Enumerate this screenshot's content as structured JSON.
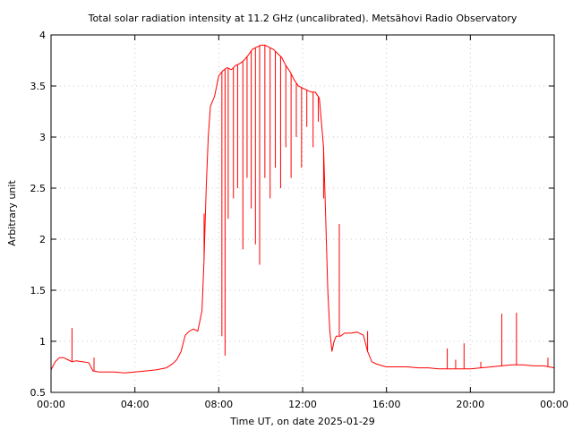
{
  "chart_data": {
    "type": "line",
    "title": "Total solar radiation intensity at 11.2 GHz (uncalibrated). Metsähovi Radio Observatory",
    "xlabel": "Time UT, on date 2025-01-29",
    "ylabel": "Arbitrary unit",
    "xlim": [
      0,
      24
    ],
    "ylim": [
      0.5,
      4.0
    ],
    "x_ticks": [
      0,
      4,
      8,
      12,
      16,
      20,
      24
    ],
    "x_tick_labels": [
      "00:00",
      "04:00",
      "08:00",
      "12:00",
      "16:00",
      "20:00",
      "00:00"
    ],
    "y_ticks": [
      0.5,
      1,
      1.5,
      2,
      2.5,
      3,
      3.5,
      4
    ],
    "y_tick_labels": [
      "0.5",
      "1",
      "1.5",
      "2",
      "2.5",
      "3",
      "3.5",
      "4"
    ],
    "grid": true,
    "line_color": "#ff0000",
    "series": [
      {
        "name": "",
        "x": [
          0.0,
          0.2,
          0.4,
          0.6,
          0.8,
          1.0,
          1.2,
          1.5,
          1.8,
          2.0,
          2.3,
          2.6,
          3.0,
          3.5,
          4.0,
          4.5,
          5.0,
          5.5,
          5.8,
          6.0,
          6.2,
          6.4,
          6.6,
          6.8,
          7.0,
          7.2,
          7.3,
          7.4,
          7.5,
          7.6,
          7.8,
          8.0,
          8.2,
          8.4,
          8.6,
          8.8,
          9.0,
          9.2,
          9.4,
          9.6,
          9.8,
          10.0,
          10.2,
          10.4,
          10.6,
          10.8,
          11.0,
          11.2,
          11.4,
          11.6,
          11.8,
          12.0,
          12.2,
          12.4,
          12.6,
          12.8,
          13.0,
          13.1,
          13.2,
          13.3,
          13.4,
          13.5,
          13.6,
          13.8,
          14.0,
          14.3,
          14.6,
          14.9,
          15.1,
          15.3,
          15.5,
          15.8,
          16.0,
          16.5,
          17.0,
          17.5,
          18.0,
          18.5,
          19.0,
          19.5,
          20.0,
          20.5,
          21.0,
          21.5,
          22.0,
          22.5,
          23.0,
          23.5,
          24.0
        ],
        "y": [
          0.72,
          0.8,
          0.84,
          0.84,
          0.82,
          0.8,
          0.81,
          0.8,
          0.79,
          0.71,
          0.7,
          0.7,
          0.7,
          0.69,
          0.7,
          0.71,
          0.72,
          0.74,
          0.78,
          0.82,
          0.9,
          1.06,
          1.1,
          1.12,
          1.1,
          1.3,
          1.8,
          2.5,
          3.0,
          3.3,
          3.4,
          3.6,
          3.65,
          3.68,
          3.66,
          3.7,
          3.72,
          3.75,
          3.8,
          3.86,
          3.88,
          3.9,
          3.9,
          3.88,
          3.86,
          3.82,
          3.78,
          3.7,
          3.64,
          3.56,
          3.5,
          3.48,
          3.46,
          3.44,
          3.44,
          3.38,
          2.9,
          2.2,
          1.5,
          1.1,
          0.9,
          1.0,
          1.05,
          1.05,
          1.08,
          1.08,
          1.09,
          1.06,
          0.9,
          0.8,
          0.78,
          0.76,
          0.75,
          0.75,
          0.75,
          0.74,
          0.74,
          0.73,
          0.73,
          0.73,
          0.73,
          0.74,
          0.75,
          0.76,
          0.77,
          0.77,
          0.76,
          0.76,
          0.74
        ]
      }
    ],
    "dips": [
      {
        "x": 8.15,
        "y": 1.05
      },
      {
        "x": 8.3,
        "y": 0.86
      },
      {
        "x": 8.45,
        "y": 2.2
      },
      {
        "x": 8.7,
        "y": 2.4
      },
      {
        "x": 8.9,
        "y": 2.5
      },
      {
        "x": 9.15,
        "y": 1.9
      },
      {
        "x": 9.35,
        "y": 2.6
      },
      {
        "x": 9.55,
        "y": 2.3
      },
      {
        "x": 9.75,
        "y": 1.95
      },
      {
        "x": 9.95,
        "y": 1.75
      },
      {
        "x": 10.2,
        "y": 2.6
      },
      {
        "x": 10.45,
        "y": 2.4
      },
      {
        "x": 10.7,
        "y": 2.7
      },
      {
        "x": 10.95,
        "y": 2.5
      },
      {
        "x": 11.2,
        "y": 2.9
      },
      {
        "x": 11.45,
        "y": 2.6
      },
      {
        "x": 11.7,
        "y": 3.0
      },
      {
        "x": 11.95,
        "y": 2.7
      },
      {
        "x": 12.2,
        "y": 3.1
      },
      {
        "x": 12.5,
        "y": 2.9
      },
      {
        "x": 12.75,
        "y": 3.15
      },
      {
        "x": 13.0,
        "y": 2.4
      }
    ],
    "spikes": [
      {
        "x": 1.0,
        "y": 1.13
      },
      {
        "x": 2.05,
        "y": 0.84
      },
      {
        "x": 7.3,
        "y": 2.25
      },
      {
        "x": 13.75,
        "y": 2.15
      },
      {
        "x": 15.1,
        "y": 1.1
      },
      {
        "x": 18.9,
        "y": 0.93
      },
      {
        "x": 19.3,
        "y": 0.82
      },
      {
        "x": 19.7,
        "y": 0.98
      },
      {
        "x": 20.5,
        "y": 0.8
      },
      {
        "x": 21.5,
        "y": 1.27
      },
      {
        "x": 22.2,
        "y": 1.28
      },
      {
        "x": 23.7,
        "y": 0.84
      }
    ]
  }
}
